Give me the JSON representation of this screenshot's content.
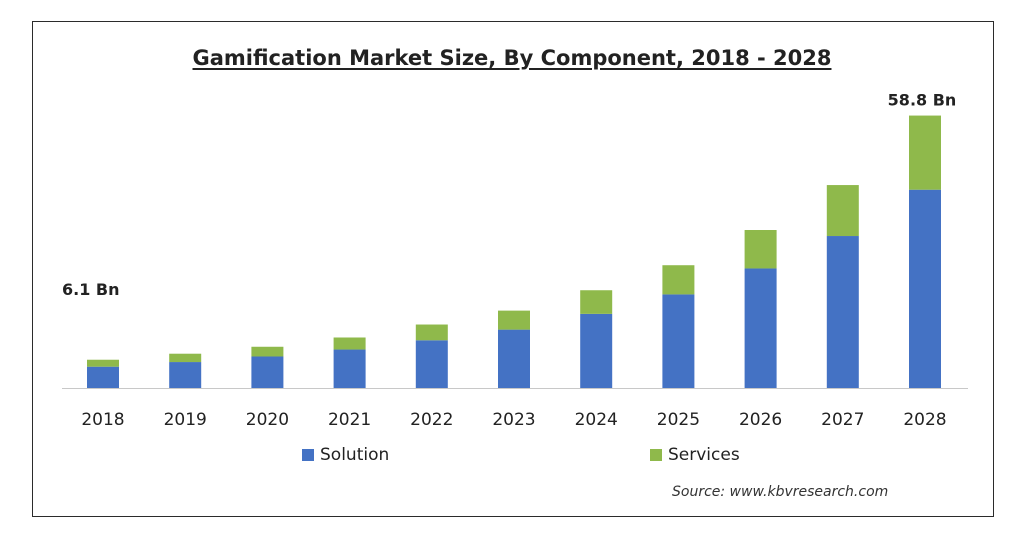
{
  "chart_data": {
    "type": "bar",
    "stacked": true,
    "title": "Gamification Market Size, By Component, 2018 - 2028",
    "categories": [
      "2018",
      "2019",
      "2020",
      "2021",
      "2022",
      "2023",
      "2024",
      "2025",
      "2026",
      "2027",
      "2028"
    ],
    "series": [
      {
        "name": "Solution",
        "color": "#4472c4",
        "values": [
          4.6,
          5.6,
          6.8,
          8.3,
          10.3,
          12.6,
          16.0,
          20.2,
          25.8,
          32.8,
          42.8
        ]
      },
      {
        "name": "Services",
        "color": "#8fb94b",
        "values": [
          1.5,
          1.8,
          2.1,
          2.6,
          3.4,
          4.1,
          5.1,
          6.3,
          8.3,
          11.0,
          16.0
        ]
      }
    ],
    "data_labels": [
      {
        "category": "2018",
        "text": "6.1 Bn"
      },
      {
        "category": "2028",
        "text": "58.8 Bn"
      }
    ],
    "legend": [
      "Solution",
      "Services"
    ],
    "legend_position": "bottom",
    "grid": false,
    "ylim": [
      0,
      60
    ],
    "source": "Source:  www.kbvresearch.com"
  }
}
